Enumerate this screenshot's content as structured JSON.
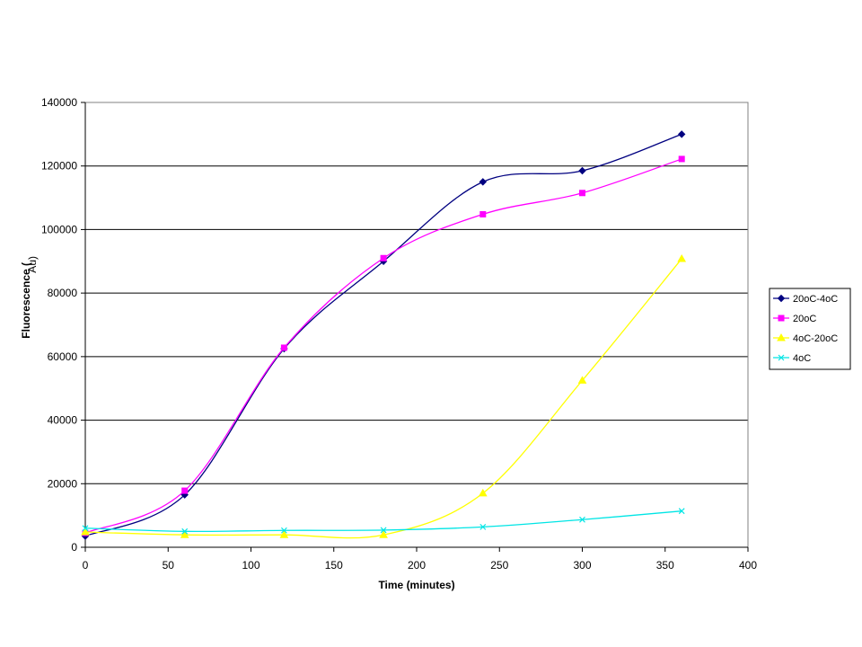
{
  "chart_data": {
    "type": "line",
    "xlabel": "Time (minutes)",
    "ylabel_main": "Fluorescence (",
    "ylabel_sub": "Au)",
    "xlim": [
      0,
      400
    ],
    "ylim": [
      0,
      140000
    ],
    "xticks": [
      0,
      50,
      100,
      150,
      200,
      250,
      300,
      350,
      400
    ],
    "yticks": [
      0,
      20000,
      40000,
      60000,
      80000,
      100000,
      120000,
      140000
    ],
    "grid": "horizontal",
    "legend_position": "right",
    "series": [
      {
        "name": "20oC-4oC",
        "color": "#000080",
        "marker": "diamond",
        "x": [
          0,
          60,
          120,
          180,
          240,
          300,
          360
        ],
        "y": [
          3500,
          16500,
          62500,
          90000,
          115000,
          118500,
          130000
        ]
      },
      {
        "name": "20oC",
        "color": "#ff00ff",
        "marker": "square",
        "x": [
          0,
          60,
          120,
          180,
          240,
          300,
          360
        ],
        "y": [
          4500,
          17800,
          62800,
          91000,
          104800,
          111500,
          122200
        ]
      },
      {
        "name": "4oC-20oC",
        "color": "#ffff00",
        "marker": "triangle",
        "x": [
          0,
          60,
          120,
          180,
          240,
          300,
          360
        ],
        "y": [
          4800,
          3900,
          3900,
          3900,
          17000,
          52500,
          90800
        ]
      },
      {
        "name": "4oC",
        "color": "#00e5e5",
        "marker": "x",
        "x": [
          0,
          60,
          120,
          180,
          240,
          300,
          360
        ],
        "y": [
          6000,
          5000,
          5300,
          5400,
          6400,
          8700,
          11400
        ]
      }
    ]
  }
}
